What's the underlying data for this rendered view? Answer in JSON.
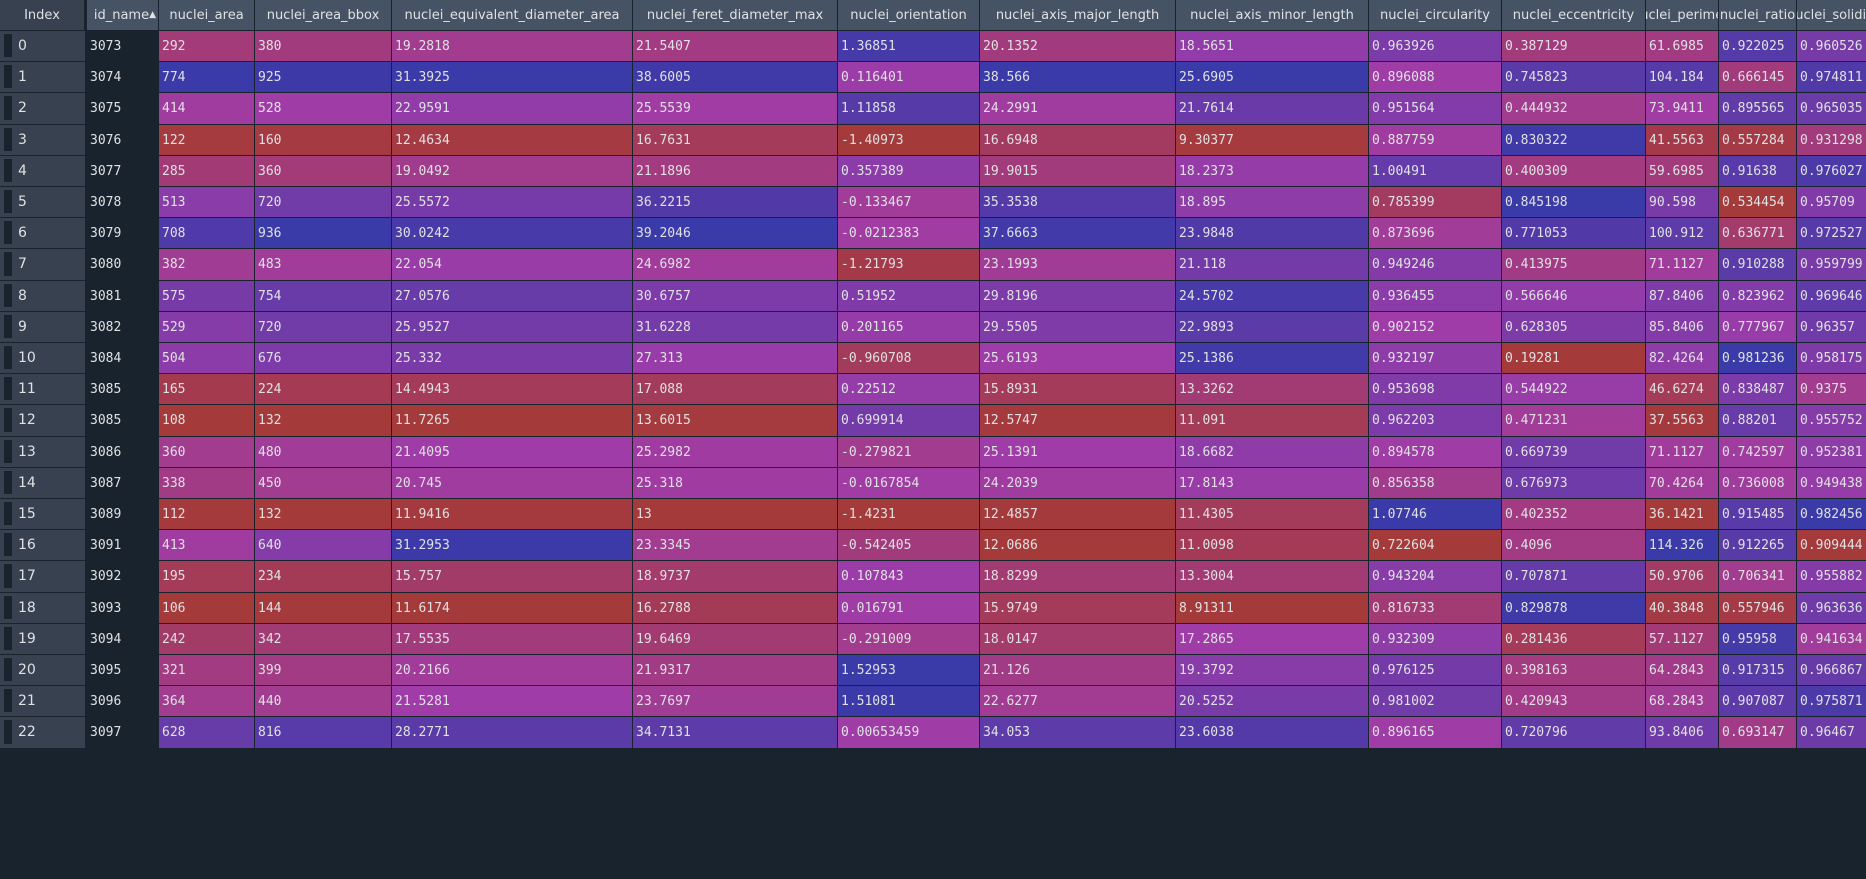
{
  "table": {
    "colormap": {
      "low": "#a53a3a",
      "mid": "#a03ca8",
      "high": "#3a3aa8"
    },
    "index_header": "Index",
    "columns": [
      {
        "label": "id_name",
        "sorted": true,
        "sort_icon": "sort-ascending-icon"
      },
      {
        "label": "nuclei_area"
      },
      {
        "label": "nuclei_area_bbox"
      },
      {
        "label": "nuclei_equivalent_diameter_area"
      },
      {
        "label": "nuclei_feret_diameter_max"
      },
      {
        "label": "nuclei_orientation"
      },
      {
        "label": "nuclei_axis_major_length"
      },
      {
        "label": "nuclei_axis_minor_length"
      },
      {
        "label": "nuclei_circularity"
      },
      {
        "label": "nuclei_eccentricity"
      },
      {
        "label": "nuclei_perimeter"
      },
      {
        "label": "nuclei_ratio"
      },
      {
        "label": "nuclei_solidity"
      }
    ],
    "rows": [
      {
        "index": "0",
        "cells": [
          "3073",
          "292",
          "380",
          "19.2818",
          "21.5407",
          "1.36851",
          "20.1352",
          "18.5651",
          "0.963926",
          "0.387129",
          "61.6985",
          "0.922025",
          "0.960526"
        ]
      },
      {
        "index": "1",
        "cells": [
          "3074",
          "774",
          "925",
          "31.3925",
          "38.6005",
          "0.116401",
          "38.566",
          "25.6905",
          "0.896088",
          "0.745823",
          "104.184",
          "0.666145",
          "0.974811"
        ]
      },
      {
        "index": "2",
        "cells": [
          "3075",
          "414",
          "528",
          "22.9591",
          "25.5539",
          "1.11858",
          "24.2991",
          "21.7614",
          "0.951564",
          "0.444932",
          "73.9411",
          "0.895565",
          "0.965035"
        ]
      },
      {
        "index": "3",
        "cells": [
          "3076",
          "122",
          "160",
          "12.4634",
          "16.7631",
          "-1.40973",
          "16.6948",
          "9.30377",
          "0.887759",
          "0.830322",
          "41.5563",
          "0.557284",
          "0.931298"
        ]
      },
      {
        "index": "4",
        "cells": [
          "3077",
          "285",
          "360",
          "19.0492",
          "21.1896",
          "0.357389",
          "19.9015",
          "18.2373",
          "1.00491",
          "0.400309",
          "59.6985",
          "0.91638",
          "0.976027"
        ]
      },
      {
        "index": "5",
        "cells": [
          "3078",
          "513",
          "720",
          "25.5572",
          "36.2215",
          "-0.133467",
          "35.3538",
          "18.895",
          "0.785399",
          "0.845198",
          "90.598",
          "0.534454",
          "0.95709"
        ]
      },
      {
        "index": "6",
        "cells": [
          "3079",
          "708",
          "936",
          "30.0242",
          "39.2046",
          "-0.0212383",
          "37.6663",
          "23.9848",
          "0.873696",
          "0.771053",
          "100.912",
          "0.636771",
          "0.972527"
        ]
      },
      {
        "index": "7",
        "cells": [
          "3080",
          "382",
          "483",
          "22.054",
          "24.6982",
          "-1.21793",
          "23.1993",
          "21.118",
          "0.949246",
          "0.413975",
          "71.1127",
          "0.910288",
          "0.959799"
        ]
      },
      {
        "index": "8",
        "cells": [
          "3081",
          "575",
          "754",
          "27.0576",
          "30.6757",
          "0.51952",
          "29.8196",
          "24.5702",
          "0.936455",
          "0.566646",
          "87.8406",
          "0.823962",
          "0.969646"
        ]
      },
      {
        "index": "9",
        "cells": [
          "3082",
          "529",
          "720",
          "25.9527",
          "31.6228",
          "0.201165",
          "29.5505",
          "22.9893",
          "0.902152",
          "0.628305",
          "85.8406",
          "0.777967",
          "0.96357"
        ]
      },
      {
        "index": "10",
        "cells": [
          "3084",
          "504",
          "676",
          "25.332",
          "27.313",
          "-0.960708",
          "25.6193",
          "25.1386",
          "0.932197",
          "0.19281",
          "82.4264",
          "0.981236",
          "0.958175"
        ]
      },
      {
        "index": "11",
        "cells": [
          "3085",
          "165",
          "224",
          "14.4943",
          "17.088",
          "0.22512",
          "15.8931",
          "13.3262",
          "0.953698",
          "0.544922",
          "46.6274",
          "0.838487",
          "0.9375"
        ]
      },
      {
        "index": "12",
        "cells": [
          "3085",
          "108",
          "132",
          "11.7265",
          "13.6015",
          "0.699914",
          "12.5747",
          "11.091",
          "0.962203",
          "0.471231",
          "37.5563",
          "0.88201",
          "0.955752"
        ]
      },
      {
        "index": "13",
        "cells": [
          "3086",
          "360",
          "480",
          "21.4095",
          "25.2982",
          "-0.279821",
          "25.1391",
          "18.6682",
          "0.894578",
          "0.669739",
          "71.1127",
          "0.742597",
          "0.952381"
        ]
      },
      {
        "index": "14",
        "cells": [
          "3087",
          "338",
          "450",
          "20.745",
          "25.318",
          "-0.0167854",
          "24.2039",
          "17.8143",
          "0.856358",
          "0.676973",
          "70.4264",
          "0.736008",
          "0.949438"
        ]
      },
      {
        "index": "15",
        "cells": [
          "3089",
          "112",
          "132",
          "11.9416",
          "13",
          "-1.4231",
          "12.4857",
          "11.4305",
          "1.07746",
          "0.402352",
          "36.1421",
          "0.915485",
          "0.982456"
        ]
      },
      {
        "index": "16",
        "cells": [
          "3091",
          "413",
          "640",
          "31.2953",
          "23.3345",
          "-0.542405",
          "12.0686",
          "11.0098",
          "0.722604",
          "0.4096",
          "114.326",
          "0.912265",
          "0.909444"
        ]
      },
      {
        "index": "17",
        "cells": [
          "3092",
          "195",
          "234",
          "15.757",
          "18.9737",
          "0.107843",
          "18.8299",
          "13.3004",
          "0.943204",
          "0.707871",
          "50.9706",
          "0.706341",
          "0.955882"
        ]
      },
      {
        "index": "18",
        "cells": [
          "3093",
          "106",
          "144",
          "11.6174",
          "16.2788",
          "0.016791",
          "15.9749",
          "8.91311",
          "0.816733",
          "0.829878",
          "40.3848",
          "0.557946",
          "0.963636"
        ]
      },
      {
        "index": "19",
        "cells": [
          "3094",
          "242",
          "342",
          "17.5535",
          "19.6469",
          "-0.291009",
          "18.0147",
          "17.2865",
          "0.932309",
          "0.281436",
          "57.1127",
          "0.95958",
          "0.941634"
        ]
      },
      {
        "index": "20",
        "cells": [
          "3095",
          "321",
          "399",
          "20.2166",
          "21.9317",
          "1.52953",
          "21.126",
          "19.3792",
          "0.976125",
          "0.398163",
          "64.2843",
          "0.917315",
          "0.966867"
        ]
      },
      {
        "index": "21",
        "cells": [
          "3096",
          "364",
          "440",
          "21.5281",
          "23.7697",
          "1.51081",
          "22.6277",
          "20.5252",
          "0.981002",
          "0.420943",
          "68.2843",
          "0.907087",
          "0.975871"
        ]
      },
      {
        "index": "22",
        "cells": [
          "3097",
          "628",
          "816",
          "28.2771",
          "34.7131",
          "0.00653459",
          "34.053",
          "23.6038",
          "0.896165",
          "0.720796",
          "93.8406",
          "0.693147",
          "0.96467"
        ]
      }
    ]
  }
}
